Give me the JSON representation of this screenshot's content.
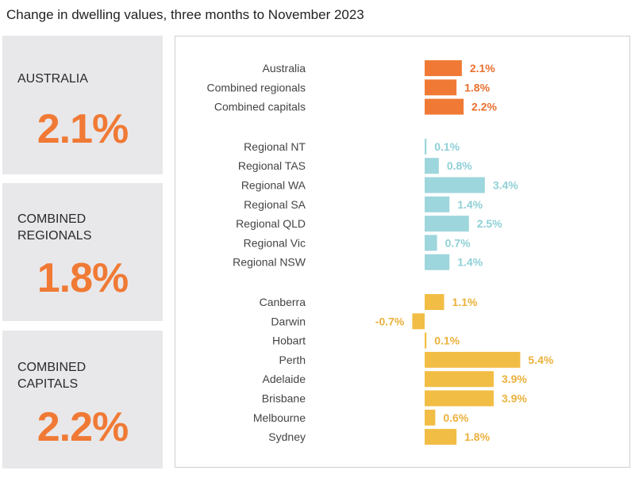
{
  "title": "Change in dwelling values, three months to November 2023",
  "cards": [
    {
      "label": "AUSTRALIA",
      "value": "2.1%"
    },
    {
      "label": "COMBINED REGIONALS",
      "value": "1.8%"
    },
    {
      "label": "COMBINED CAPITALS",
      "value": "2.2%"
    }
  ],
  "colors": {
    "national": "#f07a35",
    "regional": "#9dd6dc",
    "capital": "#f2bd45",
    "card_bg": "#e8e8eb"
  },
  "chart_data": {
    "type": "bar",
    "orientation": "horizontal",
    "groups": [
      {
        "group": "national",
        "categories": [
          "Australia",
          "Combined regionals",
          "Combined capitals"
        ],
        "values": [
          2.1,
          1.8,
          2.2
        ],
        "labels": [
          "2.1%",
          "1.8%",
          "2.2%"
        ]
      },
      {
        "group": "regional",
        "categories": [
          "Regional NT",
          "Regional TAS",
          "Regional WA",
          "Regional SA",
          "Regional QLD",
          "Regional Vic",
          "Regional NSW"
        ],
        "values": [
          0.1,
          0.8,
          3.4,
          1.4,
          2.5,
          0.7,
          1.4
        ],
        "labels": [
          "0.1%",
          "0.8%",
          "3.4%",
          "1.4%",
          "2.5%",
          "0.7%",
          "1.4%"
        ]
      },
      {
        "group": "capital",
        "categories": [
          "Canberra",
          "Darwin",
          "Hobart",
          "Perth",
          "Adelaide",
          "Brisbane",
          "Melbourne",
          "Sydney"
        ],
        "values": [
          1.1,
          -0.7,
          0.1,
          5.4,
          3.9,
          3.9,
          0.6,
          1.8
        ],
        "labels": [
          "1.1%",
          "-0.7%",
          "0.1%",
          "5.4%",
          "3.9%",
          "3.9%",
          "0.6%",
          "1.8%"
        ]
      }
    ],
    "xlim": [
      -0.7,
      5.4
    ],
    "grid": false,
    "legend": "none"
  }
}
